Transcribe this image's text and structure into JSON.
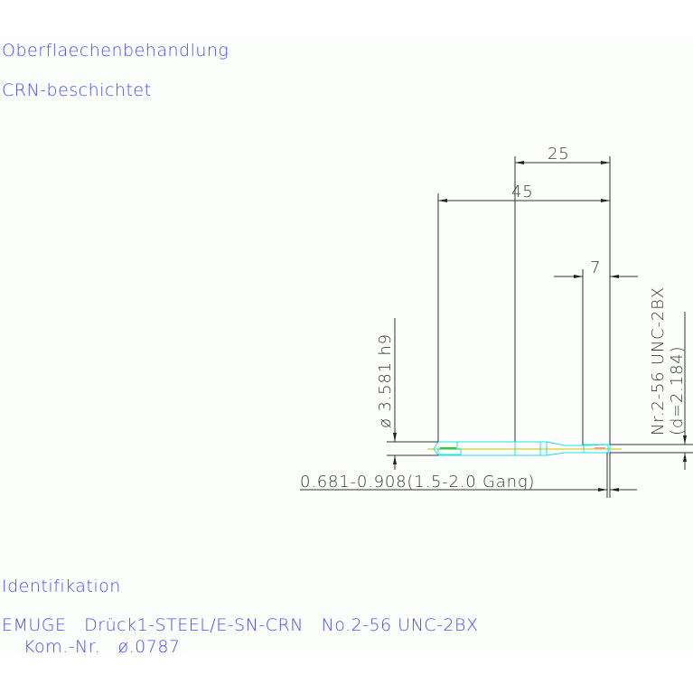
{
  "notes": {
    "surface_heading": "Oberflaechenbehandlung",
    "surface_value": "CRN-beschichtet",
    "ident_heading": "Identifikation",
    "ident_line1": "EMUGE   Drück1-STEEL/E-SN-CRN   No.2-56 UNC-2BX",
    "ident_line2": "Kom.-Nr.   ø.0787"
  },
  "dimensions": {
    "length_25": "25",
    "length_45": "45",
    "length_7": "7",
    "shank_diameter": "ø 3.581 h9",
    "thread_spec": "Nr.2-56 UNC-2BX",
    "thread_d": "(d=2.184)",
    "chamfer": "0.681-0.908(1.5-2.0 Gang)"
  },
  "colors": {
    "text_label": "#4a4aff",
    "outline": "#22e0e8",
    "centerline": "#e6e07a",
    "dimension": "#333333"
  }
}
